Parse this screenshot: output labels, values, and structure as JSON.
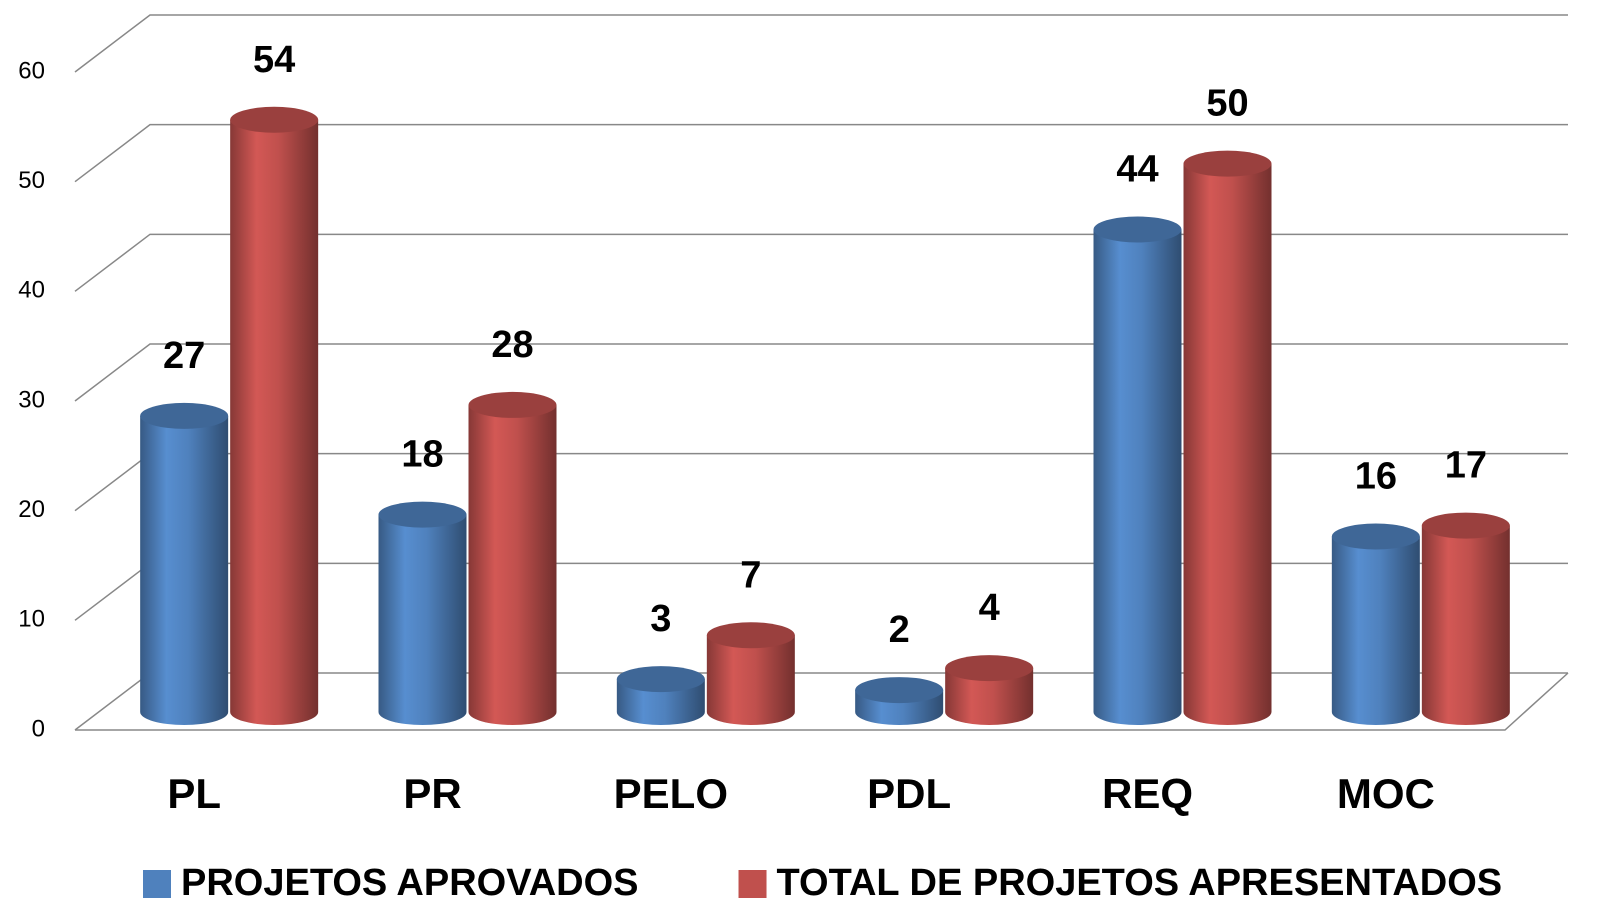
{
  "chart_data": {
    "type": "bar3d",
    "categories": [
      "PL",
      "PR",
      "PELO",
      "PDL",
      "REQ",
      "MOC"
    ],
    "series": [
      {
        "name": "PROJETOS APROVADOS",
        "color": "#4f81bd",
        "values": [
          27,
          18,
          3,
          2,
          44,
          16
        ]
      },
      {
        "name": "TOTAL DE PROJETOS APRESENTADOS",
        "color": "#c0504d",
        "values": [
          54,
          28,
          7,
          4,
          50,
          17
        ]
      }
    ],
    "ylim": [
      0,
      60
    ],
    "yticks": [
      0,
      10,
      20,
      30,
      40,
      50,
      60
    ],
    "grid": true,
    "legend": "bottom"
  }
}
